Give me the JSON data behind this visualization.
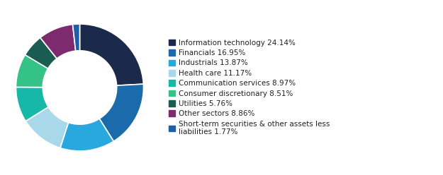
{
  "labels": [
    "Information technology 24.14%",
    "Financials 16.95%",
    "Industrials 13.87%",
    "Health care 11.17%",
    "Communication services 8.97%",
    "Consumer discretionary 8.51%",
    "Utilities 5.76%",
    "Other sectors 8.86%",
    "Short-term securities & other assets less\nliabilities 1.77%"
  ],
  "values": [
    24.14,
    16.95,
    13.87,
    11.17,
    8.97,
    8.51,
    5.76,
    8.86,
    1.77
  ],
  "colors": [
    "#1b2a4a",
    "#1b6aab",
    "#29a8e0",
    "#a8d8ea",
    "#18b8a8",
    "#35c286",
    "#1a5c52",
    "#7b2b6e",
    "#1d5fa8"
  ],
  "figsize": [
    6.25,
    2.48
  ],
  "dpi": 100,
  "donut_width": 0.42,
  "start_angle": 90
}
